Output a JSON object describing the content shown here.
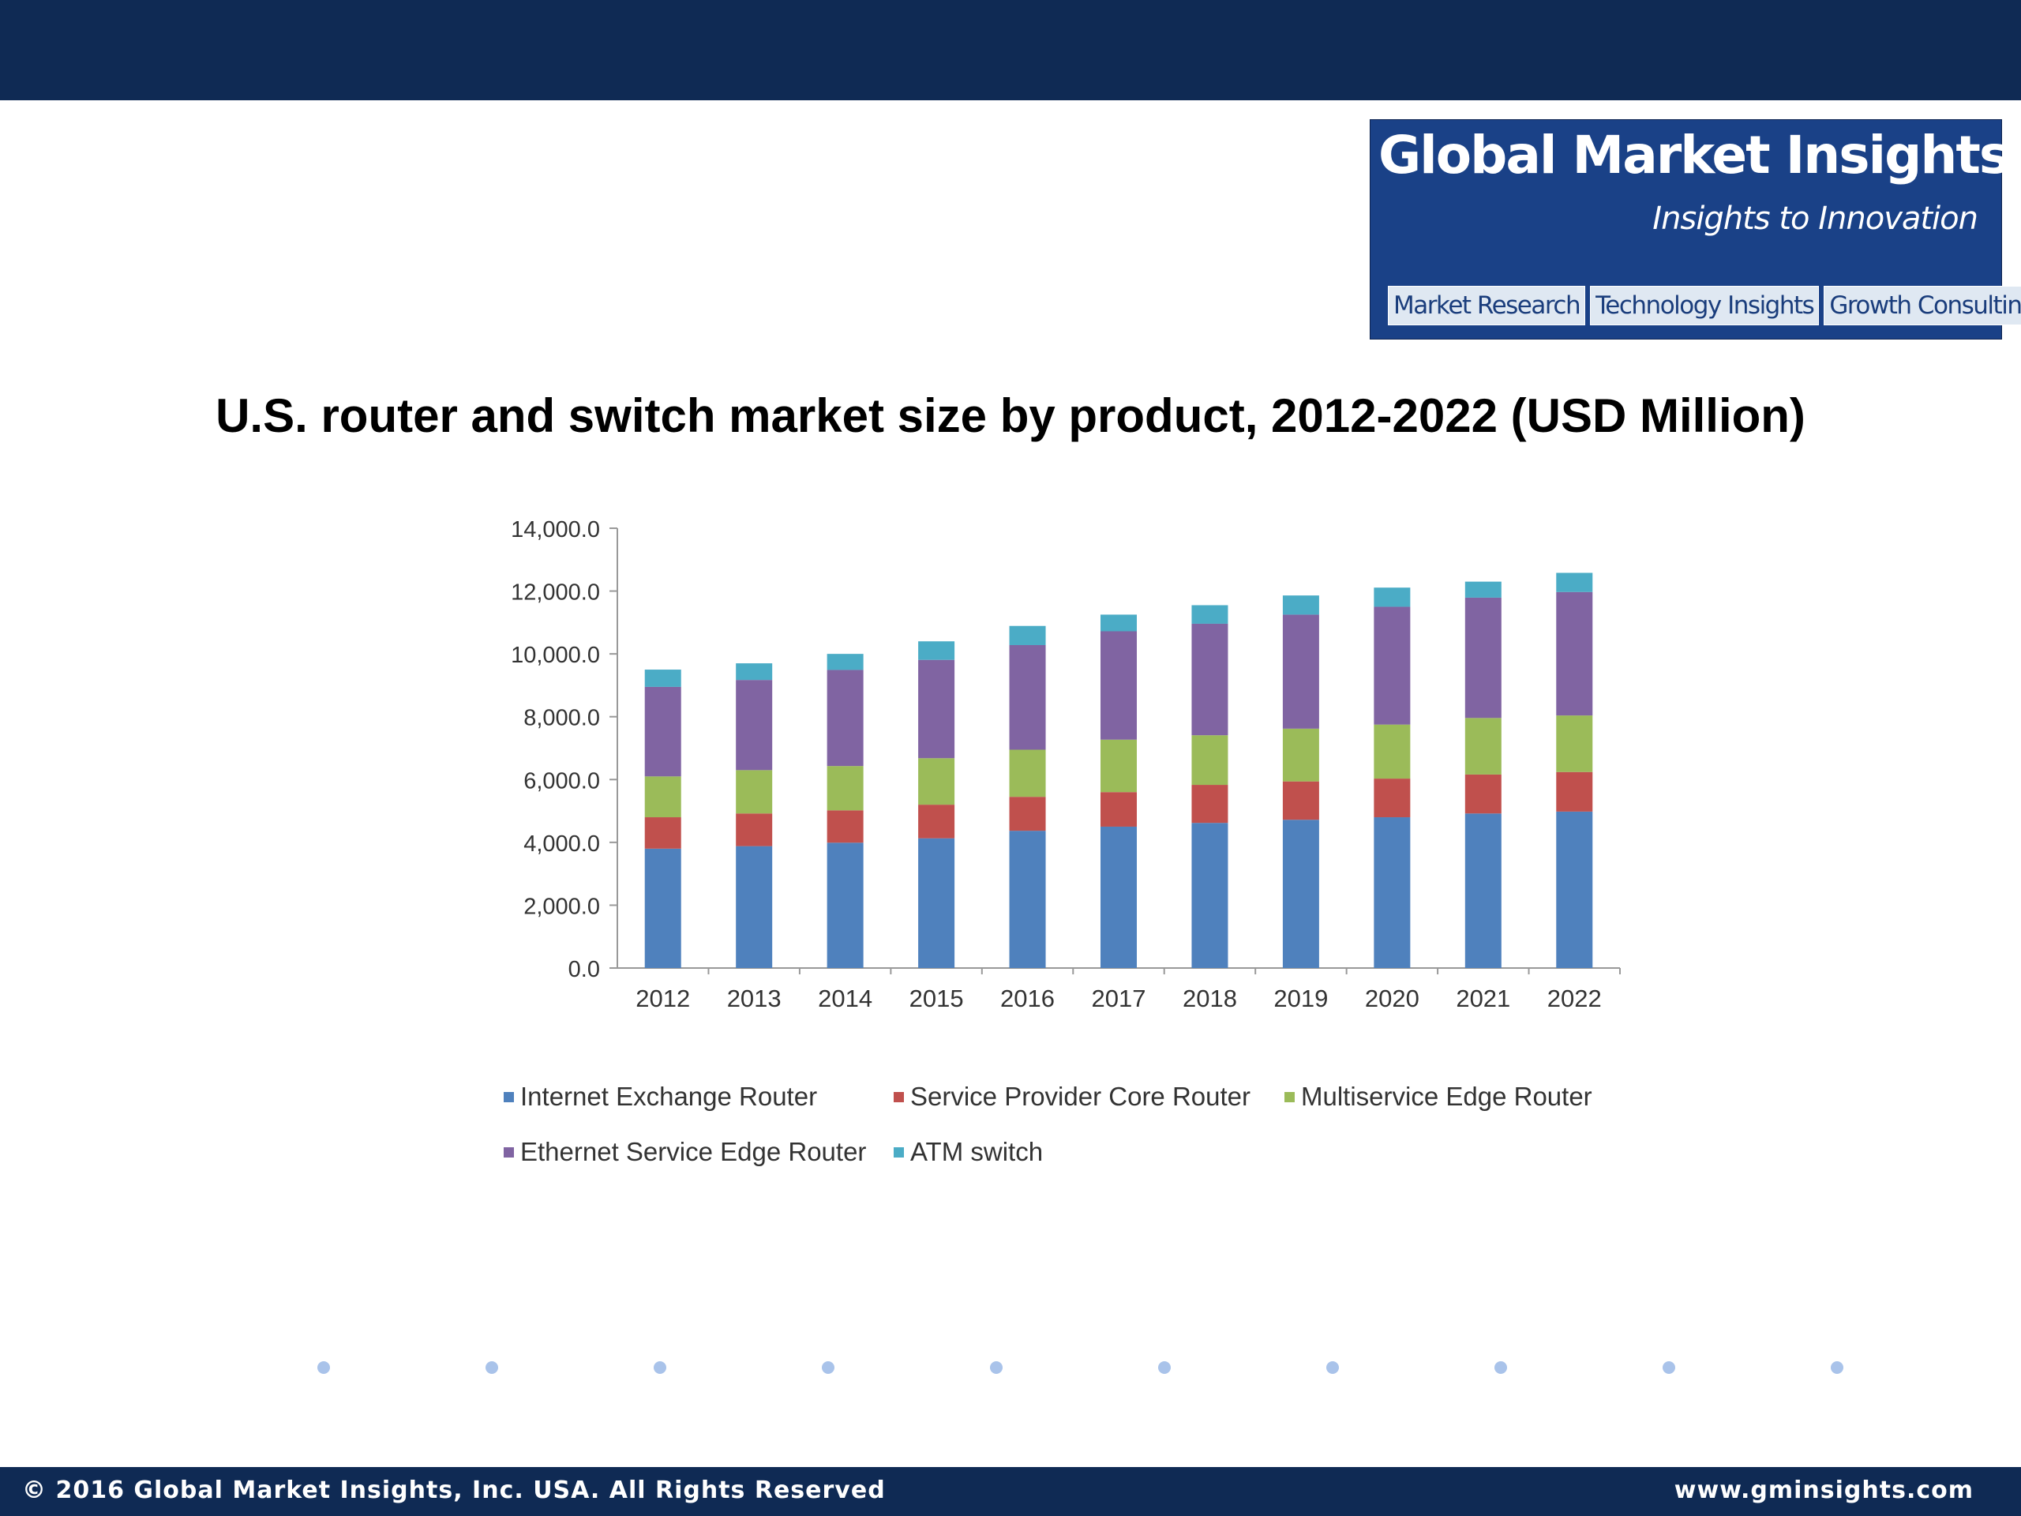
{
  "logo": {
    "title": "Global Market Insights",
    "tagline": "Insights to Innovation",
    "tabs": [
      "Market Research",
      "Technology Insights",
      "Growth Consulting"
    ]
  },
  "footer": {
    "copyright": "© 2016 Global Market Insights, Inc. USA.  All Rights Reserved",
    "website": "www.gminsights.com"
  },
  "colors": {
    "header_bar": "#0f2a54",
    "logo_bg": "#1a4187",
    "dot": "#a9c3ea"
  },
  "chart_data": {
    "type": "bar",
    "stacked": true,
    "title": "U.S. router and switch market size by product, 2012-2022 (USD Million)",
    "xlabel": "",
    "ylabel": "",
    "ylim": [
      0,
      14000
    ],
    "yticks": [
      "0.0",
      "2,000.0",
      "4,000.0",
      "6,000.0",
      "8,000.0",
      "10,000.0",
      "12,000.0",
      "14,000.0"
    ],
    "categories": [
      "2012",
      "2013",
      "2014",
      "2015",
      "2016",
      "2017",
      "2018",
      "2019",
      "2020",
      "2021",
      "2022"
    ],
    "legend_position": "bottom",
    "series": [
      {
        "name": "Internet Exchange Router",
        "color": "#4f81bd",
        "values": [
          3800,
          3880,
          3990,
          4130,
          4370,
          4500,
          4620,
          4720,
          4800,
          4920,
          4980
        ]
      },
      {
        "name": "Service Provider Core Router",
        "color": "#c0504d",
        "values": [
          1000,
          1040,
          1030,
          1070,
          1080,
          1100,
          1210,
          1220,
          1230,
          1240,
          1260
        ]
      },
      {
        "name": "Multiservice Edge Router",
        "color": "#9bbb59",
        "values": [
          1300,
          1380,
          1410,
          1480,
          1500,
          1670,
          1580,
          1680,
          1720,
          1800,
          1800
        ]
      },
      {
        "name": "Ethernet Service Edge Router",
        "color": "#8064a2",
        "values": [
          2850,
          2870,
          3060,
          3130,
          3330,
          3450,
          3550,
          3630,
          3750,
          3830,
          3930
        ]
      },
      {
        "name": "ATM switch",
        "color": "#4bacc6",
        "values": [
          550,
          530,
          510,
          590,
          610,
          530,
          590,
          610,
          610,
          510,
          610
        ]
      }
    ]
  }
}
